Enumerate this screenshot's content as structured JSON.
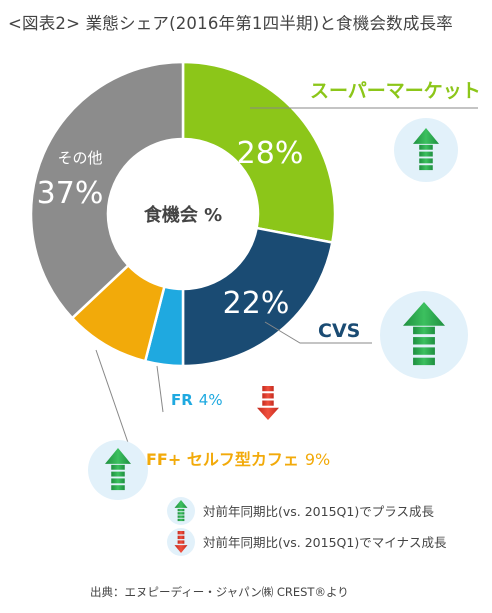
{
  "title": "<図表2> 業態シェア(2016年第1四半期)と食機会数成長率",
  "chart_data": {
    "type": "pie",
    "center_label": "食機会 %",
    "slices": [
      {
        "label": "スーパーマーケット",
        "value": 28,
        "value_text": "28%",
        "color": "#8cc619",
        "label_color": "#8cc619",
        "trend": "up"
      },
      {
        "label": "CVS",
        "value": 22,
        "value_text": "22%",
        "color": "#1a4b73",
        "label_color": "#1a4b73",
        "trend": "up"
      },
      {
        "label": "FR",
        "value": 4,
        "value_text": "4%",
        "color": "#1fa9e0",
        "label_color": "#1fa9e0",
        "trend": "down"
      },
      {
        "label": "FF+ セルフ型カフェ",
        "value": 9,
        "value_text": "9%",
        "color": "#f2aa0a",
        "label_color": "#f2aa0a",
        "trend": "up"
      },
      {
        "label": "その他",
        "value": 37,
        "value_text": "37%",
        "color": "#8c8c8c",
        "label_color": "#ffffff",
        "trend": null
      }
    ],
    "legend": [
      {
        "trend": "up",
        "text": "対前年同期比(vs. 2015Q1)でプラス成長"
      },
      {
        "trend": "down",
        "text": "対前年同期比(vs. 2015Q1)でマイナス成長"
      }
    ]
  },
  "source": "出典：エヌピーディー・ジャパン㈱ CREST®より",
  "icons": {
    "up": "green-up-arrow-icon",
    "down": "red-down-arrow-icon"
  },
  "colors": {
    "up": "#27a34a",
    "down": "#e23a2a",
    "icon_bg": "#e2f1fa"
  }
}
